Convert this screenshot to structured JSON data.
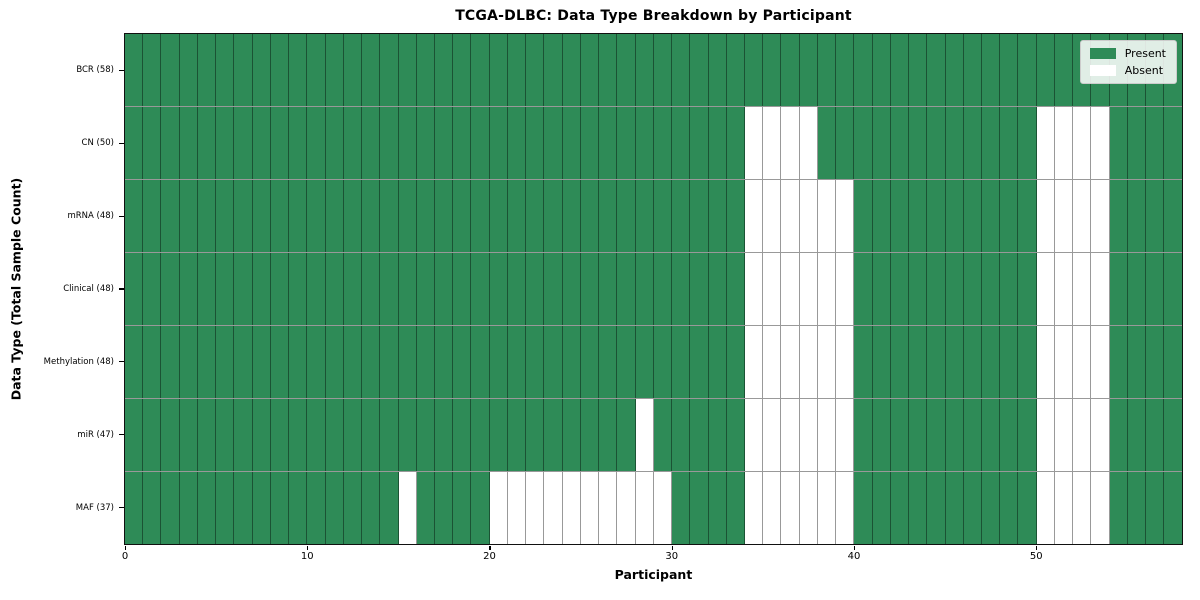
{
  "chart_data": {
    "type": "heatmap",
    "title": "TCGA-DLBC: Data Type Breakdown by Participant",
    "xlabel": "Participant",
    "ylabel": "Data Type (Total Sample Count)",
    "x_ticks": [
      0,
      10,
      20,
      30,
      40,
      50
    ],
    "x_range": [
      0,
      58
    ],
    "n_participants": 58,
    "grid": true,
    "legend_position": "upper right",
    "legend": [
      {
        "label": "Present",
        "color": "#2e8b57"
      },
      {
        "label": "Absent",
        "color": "#ffffff"
      }
    ],
    "colors": {
      "present": "#2e8b57",
      "absent": "#ffffff",
      "cell_border": "rgba(0,0,0,0.40)",
      "frame": "#111111",
      "legend_bg": "rgba(255,255,255,0.85)",
      "legend_edge": "#cccccc"
    },
    "rows": [
      {
        "label": "BCR (58)",
        "total_samples": 58,
        "absent_participants": []
      },
      {
        "label": "CN (50)",
        "total_samples": 50,
        "absent_participants": [
          34,
          35,
          36,
          37,
          50,
          51,
          52,
          53
        ]
      },
      {
        "label": "mRNA (48)",
        "total_samples": 48,
        "absent_participants": [
          34,
          35,
          36,
          37,
          38,
          39,
          50,
          51,
          52,
          53
        ]
      },
      {
        "label": "Clinical (48)",
        "total_samples": 48,
        "absent_participants": [
          34,
          35,
          36,
          37,
          38,
          39,
          50,
          51,
          52,
          53
        ]
      },
      {
        "label": "Methylation (48)",
        "total_samples": 48,
        "absent_participants": [
          34,
          35,
          36,
          37,
          38,
          39,
          50,
          51,
          52,
          53
        ]
      },
      {
        "label": "miR (47)",
        "total_samples": 47,
        "absent_participants": [
          28,
          34,
          35,
          36,
          37,
          38,
          39,
          50,
          51,
          52,
          53
        ]
      },
      {
        "label": "MAF (37)",
        "total_samples": 37,
        "absent_participants": [
          15,
          20,
          21,
          22,
          23,
          24,
          25,
          26,
          27,
          28,
          29,
          34,
          35,
          36,
          37,
          38,
          39,
          50,
          51,
          52,
          53
        ]
      }
    ]
  }
}
